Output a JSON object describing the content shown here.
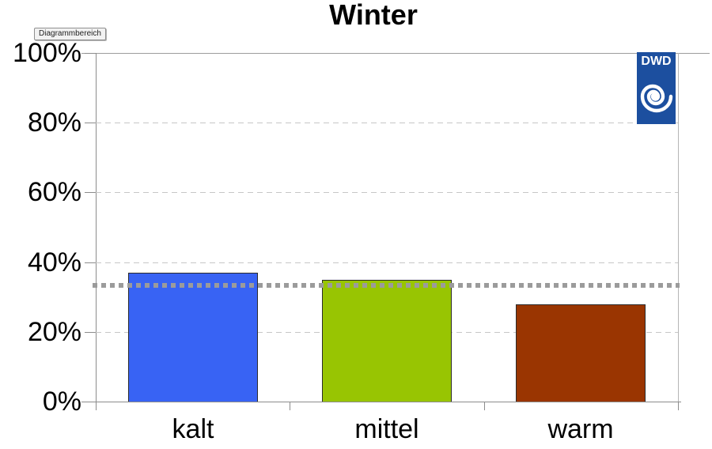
{
  "tooltip": {
    "label": "Diagrammbereich"
  },
  "chart_data": {
    "type": "bar",
    "title": "Winter",
    "categories": [
      "kalt",
      "mittel",
      "warm"
    ],
    "values": [
      37,
      35,
      28
    ],
    "value_unit": "percent",
    "xlabel": "",
    "ylabel": "",
    "ylim": [
      0,
      100
    ],
    "yticks": [
      0,
      20,
      40,
      60,
      80,
      100
    ],
    "ytick_labels": [
      "0%",
      "20%",
      "40%",
      "60%",
      "80%",
      "100%"
    ],
    "bar_colors": [
      "#3863F4",
      "#98C502",
      "#9A3501"
    ],
    "bar_border_color": "#2b2b2b",
    "reference_line": {
      "value": 33.3,
      "color": "#9b9b9b",
      "style": "thick-dotted"
    },
    "grid": {
      "style": "horizontal-dashed",
      "color": "#c6c6c6",
      "top_line_color": "#9c9c9c"
    },
    "axis_color": "#8c8c8c",
    "legend": "none"
  },
  "logo": {
    "label": "DWD",
    "background": "#1C4F9F",
    "icon": "spiral-icon"
  }
}
